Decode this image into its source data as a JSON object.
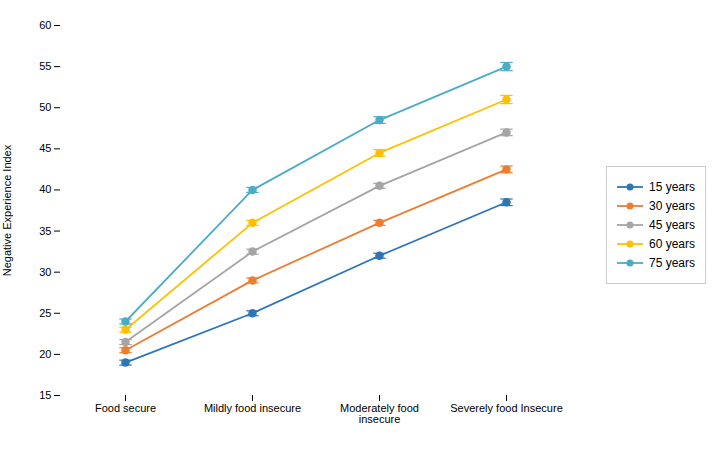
{
  "chart_data": {
    "type": "line",
    "ylabel": "Negative Experience Index",
    "categories": [
      "Food secure",
      "Mildly food insecure",
      "Moderately food\ninsecure",
      "Severely food Insecure"
    ],
    "series": [
      {
        "name": "15 years",
        "color": "#2E75B6",
        "marker": "circle",
        "values": [
          19.0,
          25.0,
          32.0,
          38.5
        ],
        "error_bars": [
          0.3,
          0.3,
          0.3,
          0.4
        ]
      },
      {
        "name": "30 years",
        "color": "#ED7D31",
        "marker": "circle",
        "values": [
          20.5,
          29.0,
          36.0,
          42.5
        ],
        "error_bars": [
          0.3,
          0.3,
          0.3,
          0.4
        ]
      },
      {
        "name": "45 years",
        "color": "#A5A5A5",
        "marker": "circle",
        "values": [
          21.5,
          32.5,
          40.5,
          47.0
        ],
        "error_bars": [
          0.3,
          0.3,
          0.3,
          0.4
        ]
      },
      {
        "name": "60 years",
        "color": "#FFC000",
        "marker": "circle",
        "values": [
          23.0,
          36.0,
          44.5,
          51.0
        ],
        "error_bars": [
          0.3,
          0.3,
          0.4,
          0.5
        ]
      },
      {
        "name": "75 years",
        "color": "#4BACC6",
        "marker": "circle",
        "values": [
          24.0,
          40.0,
          48.5,
          55.0
        ],
        "error_bars": [
          0.3,
          0.3,
          0.4,
          0.5
        ]
      }
    ],
    "ylim": [
      15,
      60
    ],
    "yticks": [
      15,
      20,
      25,
      30,
      35,
      40,
      45,
      50,
      55,
      60
    ],
    "grid": false,
    "legend": "right"
  }
}
